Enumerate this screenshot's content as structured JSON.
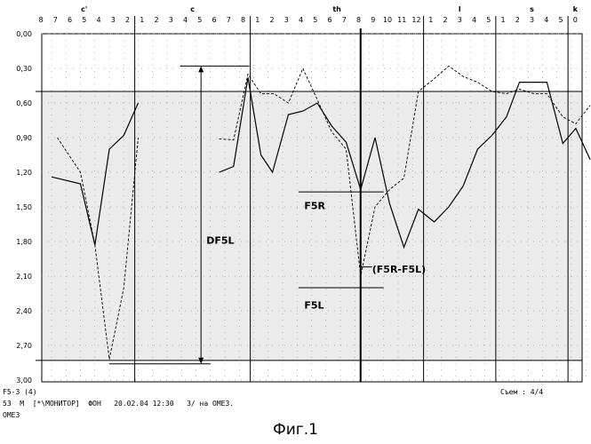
{
  "chart_data": {
    "type": "line",
    "ylim": [
      0.0,
      3.0
    ],
    "y_ticks": [
      "0,00",
      "0,30",
      "0,60",
      "0,90",
      "1,20",
      "1,50",
      "1,80",
      "2,10",
      "2,40",
      "2,70",
      "3,00"
    ],
    "y_tick_values": [
      0.0,
      0.3,
      0.6,
      0.9,
      1.2,
      1.5,
      1.8,
      2.1,
      2.4,
      2.7,
      3.0
    ],
    "x_ticks": [
      "8",
      "7",
      "6",
      "5",
      "4",
      "3",
      "2",
      "1",
      "2",
      "3",
      "4",
      "5",
      "6",
      "7",
      "8",
      "1",
      "2",
      "3",
      "4",
      "5",
      "6",
      "7",
      "8",
      "9",
      "10",
      "11",
      "12",
      "1",
      "2",
      "3",
      "4",
      "5",
      "1",
      "2",
      "3",
      "4",
      "5",
      "0"
    ],
    "regions": [
      {
        "label": "c'",
        "start": 0,
        "end": 6
      },
      {
        "label": "c",
        "start": 7,
        "end": 14
      },
      {
        "label": "th",
        "start": 15,
        "end": 26
      },
      {
        "label": "l",
        "start": 27,
        "end": 31
      },
      {
        "label": "s",
        "start": 32,
        "end": 36
      },
      {
        "label": "k",
        "start": 37,
        "end": 37
      }
    ],
    "shaded_band": [
      0.5,
      2.83
    ],
    "series": [
      {
        "style": "solid",
        "segments": [
          [
            [
              0,
              1.24
            ],
            [
              2,
              1.3
            ],
            [
              3,
              1.83
            ],
            [
              4,
              1.0
            ],
            [
              5,
              0.88
            ],
            [
              6,
              0.6
            ]
          ],
          [
            [
              11.6,
              1.2
            ],
            [
              12.6,
              1.15
            ],
            [
              13.6,
              0.38
            ],
            [
              14.5,
              1.05
            ],
            [
              15.3,
              1.2
            ],
            [
              16.4,
              0.7
            ],
            [
              17.4,
              0.67
            ],
            [
              18.4,
              0.6
            ],
            [
              19.4,
              0.8
            ],
            [
              20.4,
              0.94
            ],
            [
              21.4,
              1.35
            ],
            [
              22.4,
              0.9
            ],
            [
              23.4,
              1.47
            ],
            [
              24.4,
              1.85
            ],
            [
              25.4,
              1.52
            ],
            [
              26.5,
              1.63
            ],
            [
              27.5,
              1.5
            ],
            [
              28.5,
              1.32
            ],
            [
              29.5,
              1.0
            ],
            [
              30.5,
              0.88
            ],
            [
              31.5,
              0.72
            ],
            [
              32.4,
              0.42
            ],
            [
              34.3,
              0.42
            ],
            [
              35.4,
              0.95
            ],
            [
              36.3,
              0.82
            ],
            [
              37.3,
              1.09
            ]
          ]
        ]
      },
      {
        "style": "dashed",
        "segments": [
          [
            [
              0.4,
              0.9
            ],
            [
              2,
              1.2
            ],
            [
              3,
              1.83
            ],
            [
              4,
              2.82
            ],
            [
              5,
              2.2
            ],
            [
              6,
              0.9
            ]
          ],
          [
            [
              11.6,
              0.91
            ],
            [
              12.6,
              0.92
            ],
            [
              13.6,
              0.35
            ],
            [
              14.5,
              0.52
            ],
            [
              15.4,
              0.52
            ],
            [
              16.4,
              0.6
            ],
            [
              17.4,
              0.3
            ],
            [
              18.4,
              0.57
            ],
            [
              19.4,
              0.85
            ],
            [
              20.4,
              1.0
            ],
            [
              21.4,
              2.1
            ],
            [
              22.4,
              1.5
            ],
            [
              23.4,
              1.35
            ],
            [
              24.4,
              1.25
            ],
            [
              25.4,
              0.5
            ],
            [
              26.4,
              0.4
            ],
            [
              27.5,
              0.28
            ],
            [
              28.5,
              0.37
            ],
            [
              29.5,
              0.42
            ],
            [
              30.5,
              0.5
            ],
            [
              31.5,
              0.52
            ],
            [
              32.4,
              0.48
            ],
            [
              33.4,
              0.52
            ],
            [
              34.3,
              0.52
            ],
            [
              35.4,
              0.72
            ],
            [
              36.3,
              0.78
            ],
            [
              37.3,
              0.62
            ]
          ]
        ]
      }
    ],
    "annotations": {
      "df5l": "DF5L",
      "f5r": "F5R",
      "f5l": "F5L",
      "diff": "(F5R-F5L)"
    }
  },
  "info": {
    "line1": "F5-3 (4)",
    "line2": "53  М  [*\\МОНИТОР]  ФОН   20.02.04 12:30   3/ на ОМЕЗ.",
    "line3": "ОМЕЗ",
    "right": "Съем : 4/4"
  },
  "caption": "Фиг.1"
}
